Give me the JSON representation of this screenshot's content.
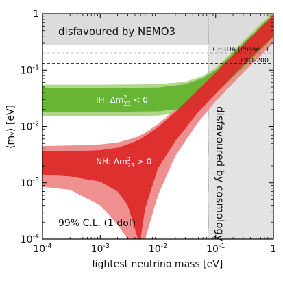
{
  "chart_data": {
    "type": "area",
    "xlabel": "lightest neutrino mass [eV]",
    "ylabel": "⟨mᵥ⟩ [eV]",
    "xscale": "log",
    "yscale": "log",
    "xlim": [
      0.0001,
      1
    ],
    "ylim": [
      0.0001,
      1
    ],
    "x_ticks": [
      {
        "value": 0.0001,
        "base": "10",
        "exp": "-4"
      },
      {
        "value": 0.001,
        "base": "10",
        "exp": "-3"
      },
      {
        "value": 0.01,
        "base": "10",
        "exp": "-2"
      },
      {
        "value": 0.1,
        "base": "10",
        "exp": "-1"
      },
      {
        "value": 1,
        "base": "1",
        "exp": ""
      }
    ],
    "y_ticks": [
      {
        "value": 0.0001,
        "base": "10",
        "exp": "-4"
      },
      {
        "value": 0.001,
        "base": "10",
        "exp": "-3"
      },
      {
        "value": 0.01,
        "base": "10",
        "exp": "-2"
      },
      {
        "value": 0.1,
        "base": "10",
        "exp": "-1"
      },
      {
        "value": 1,
        "base": "1",
        "exp": ""
      }
    ],
    "regions": [
      {
        "label": "disfavoured by NEMO3",
        "y_min": 0.28,
        "y_max": 1,
        "color": "#dcdcdc"
      },
      {
        "label": "disfavoured by cosmology",
        "x_min": 0.075,
        "x_max": 1,
        "color": "#dcdcdc"
      }
    ],
    "limits": [
      {
        "label": "GERDA (Phase 1)",
        "y": 0.2
      },
      {
        "label": "EXO-200",
        "y": 0.13
      }
    ],
    "bands": [
      {
        "id": "IH_outer",
        "color": "#a9d27f",
        "x": [
          0.0001,
          0.001,
          0.01,
          0.03,
          0.06,
          0.1,
          0.3,
          1
        ],
        "upper": [
          0.055,
          0.055,
          0.056,
          0.062,
          0.078,
          0.11,
          0.33,
          1.1
        ],
        "lower": [
          0.015,
          0.015,
          0.0155,
          0.018,
          0.024,
          0.033,
          0.095,
          0.32
        ]
      },
      {
        "id": "IH_inner",
        "color": "#62b22c",
        "x": [
          0.0001,
          0.001,
          0.01,
          0.03,
          0.06,
          0.1,
          0.3,
          1
        ],
        "upper": [
          0.048,
          0.048,
          0.049,
          0.056,
          0.072,
          0.1,
          0.3,
          1.0
        ],
        "lower": [
          0.018,
          0.018,
          0.0185,
          0.021,
          0.028,
          0.039,
          0.11,
          0.38
        ]
      },
      {
        "id": "NH_outer",
        "color": "#ee8a8a",
        "x": [
          0.0001,
          0.0003,
          0.001,
          0.002,
          0.003,
          0.0045,
          0.006,
          0.01,
          0.02,
          0.05,
          0.1,
          0.3,
          1
        ],
        "upper": [
          0.0045,
          0.0046,
          0.0048,
          0.0052,
          0.0058,
          0.0066,
          0.0077,
          0.011,
          0.02,
          0.05,
          0.1,
          0.3,
          1.0
        ],
        "lower": [
          0.00085,
          0.00075,
          0.0004,
          0.00018,
          0.0001,
          0.0001,
          0.0001,
          0.0006,
          0.003,
          0.012,
          0.028,
          0.09,
          0.3
        ]
      },
      {
        "id": "NH_inner",
        "color": "#dd2b2b",
        "x": [
          0.0001,
          0.0003,
          0.001,
          0.002,
          0.003,
          0.004,
          0.0045,
          0.005,
          0.006,
          0.01,
          0.02,
          0.05,
          0.1,
          0.3,
          1
        ],
        "upper": [
          0.0036,
          0.0036,
          0.0038,
          0.0042,
          0.0048,
          0.0054,
          0.0057,
          0.006,
          0.0068,
          0.0097,
          0.018,
          0.045,
          0.09,
          0.28,
          0.95
        ],
        "lower": [
          0.0014,
          0.0013,
          0.00105,
          0.0007,
          0.0004,
          0.00015,
          0.0001,
          0.0001,
          0.00035,
          0.0018,
          0.0055,
          0.018,
          0.038,
          0.12,
          0.4
        ]
      }
    ],
    "annotations": {
      "nemo": "disfavoured by NEMO3",
      "gerda": "GERDA (Phase 1)",
      "exo": "EXO-200",
      "cosmo": "disfavoured by cosmology",
      "ih_prefix": "IH: Δm",
      "ih_sup": "2",
      "ih_sub": "23",
      "ih_suffix": " < 0",
      "nh_prefix": "NH: Δm",
      "nh_sup": "2",
      "nh_sub": "23",
      "nh_suffix": " > 0",
      "cl": "99% C.L. (1 dof)"
    },
    "grid": false
  }
}
